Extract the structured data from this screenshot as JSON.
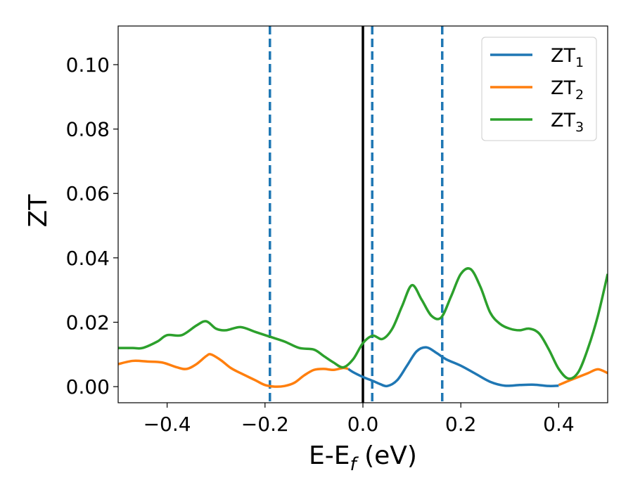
{
  "chart_data": {
    "type": "line",
    "xlabel": {
      "base": "E-E",
      "sub": "f",
      "tail": " (eV)"
    },
    "ylabel": "ZT",
    "xlim": [
      -0.5,
      0.5
    ],
    "ylim": [
      -0.005,
      0.112
    ],
    "xticks": [
      -0.4,
      -0.2,
      0.0,
      0.2,
      0.4
    ],
    "xtick_labels": [
      "−0.4",
      "−0.2",
      "0.0",
      "0.2",
      "0.4"
    ],
    "yticks": [
      0.0,
      0.02,
      0.04,
      0.06,
      0.08,
      0.1
    ],
    "ytick_labels": [
      "0.00",
      "0.02",
      "0.04",
      "0.06",
      "0.08",
      "0.10"
    ],
    "grid": false,
    "legend_position": "top-right",
    "vertical_lines": [
      {
        "x": 0.0,
        "style": "solid",
        "color": "#000000"
      },
      {
        "x": -0.19,
        "style": "dashed",
        "color": "#1f77b4"
      },
      {
        "x": 0.019,
        "style": "dashed",
        "color": "#1f77b4"
      },
      {
        "x": 0.162,
        "style": "dashed",
        "color": "#1f77b4"
      }
    ],
    "series": [
      {
        "name": "ZT",
        "sub": "1",
        "color": "#1f77b4",
        "x": [
          -0.03,
          -0.02,
          0.0,
          0.02,
          0.035,
          0.05,
          0.07,
          0.09,
          0.11,
          0.13,
          0.15,
          0.17,
          0.2,
          0.23,
          0.26,
          0.29,
          0.32,
          0.35,
          0.38,
          0.4
        ],
        "y": [
          0.0055,
          0.0045,
          0.003,
          0.0018,
          0.0008,
          0.0002,
          0.002,
          0.0065,
          0.011,
          0.0122,
          0.0105,
          0.0085,
          0.0065,
          0.004,
          0.0015,
          0.0003,
          0.0005,
          0.0006,
          0.0002,
          0.0003
        ]
      },
      {
        "name": "ZT",
        "sub": "2",
        "color": "#ff7f0e",
        "x": [
          -0.5,
          -0.47,
          -0.44,
          -0.41,
          -0.38,
          -0.36,
          -0.34,
          -0.32,
          -0.31,
          -0.29,
          -0.27,
          -0.25,
          -0.22,
          -0.2,
          -0.18,
          -0.16,
          -0.14,
          -0.12,
          -0.1,
          -0.08,
          -0.06,
          -0.04,
          -0.03,
          0.4,
          0.42,
          0.44,
          0.46,
          0.48,
          0.5
        ],
        "y": [
          0.007,
          0.008,
          0.0078,
          0.0075,
          0.006,
          0.0055,
          0.007,
          0.0095,
          0.01,
          0.0082,
          0.0058,
          0.0042,
          0.002,
          0.0005,
          0.0,
          0.0002,
          0.0012,
          0.0035,
          0.0052,
          0.0055,
          0.0052,
          0.0058,
          0.0055,
          0.0005,
          0.0018,
          0.003,
          0.0042,
          0.0054,
          0.0042
        ]
      },
      {
        "name": "ZT",
        "sub": "3",
        "color": "#2ca02c",
        "x": [
          -0.5,
          -0.47,
          -0.45,
          -0.42,
          -0.4,
          -0.37,
          -0.34,
          -0.32,
          -0.3,
          -0.28,
          -0.25,
          -0.22,
          -0.19,
          -0.16,
          -0.13,
          -0.1,
          -0.08,
          -0.06,
          -0.04,
          -0.02,
          0.0,
          0.02,
          0.04,
          0.06,
          0.08,
          0.1,
          0.12,
          0.14,
          0.16,
          0.18,
          0.2,
          0.22,
          0.24,
          0.26,
          0.28,
          0.3,
          0.32,
          0.34,
          0.36,
          0.38,
          0.4,
          0.42,
          0.44,
          0.46,
          0.48,
          0.5
        ],
        "y": [
          0.012,
          0.012,
          0.012,
          0.014,
          0.016,
          0.016,
          0.019,
          0.0203,
          0.018,
          0.0175,
          0.0185,
          0.017,
          0.0155,
          0.014,
          0.012,
          0.0115,
          0.0095,
          0.0075,
          0.006,
          0.0085,
          0.0135,
          0.0158,
          0.0148,
          0.018,
          0.025,
          0.0315,
          0.027,
          0.022,
          0.0215,
          0.028,
          0.035,
          0.0365,
          0.031,
          0.023,
          0.0195,
          0.018,
          0.0175,
          0.018,
          0.0165,
          0.0115,
          0.0055,
          0.0025,
          0.0045,
          0.012,
          0.022,
          0.035
        ]
      }
    ]
  }
}
